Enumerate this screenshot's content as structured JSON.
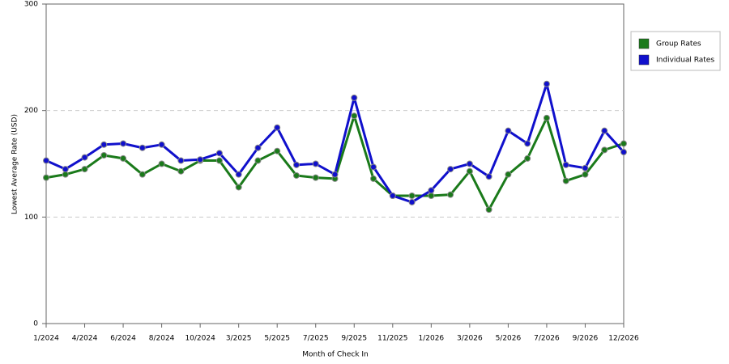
{
  "chart_data": {
    "type": "line",
    "x_label": "Month of Check In",
    "y_label": "Lowest Average Rate (USD)",
    "categories": [
      "1/2024",
      null,
      "4/2024",
      null,
      "6/2024",
      null,
      "8/2024",
      null,
      "10/2024",
      null,
      "3/2025",
      null,
      "5/2025",
      null,
      "7/2025",
      null,
      "9/2025",
      null,
      "11/2025",
      null,
      "1/2026",
      null,
      "3/2026",
      null,
      "5/2026",
      null,
      "7/2026",
      null,
      "9/2026",
      null,
      "12/2026"
    ],
    "series": [
      {
        "name": "Group Rates",
        "color": "#1a7a1a",
        "values": [
          137,
          140,
          145,
          158,
          155,
          140,
          150,
          143,
          153,
          153,
          128,
          153,
          162,
          139,
          137,
          136,
          195,
          136,
          120,
          120,
          120,
          121,
          143,
          107,
          140,
          155,
          193,
          134,
          140,
          163,
          169
        ]
      },
      {
        "name": "Individual Rates",
        "color": "#1010cc",
        "values": [
          153,
          145,
          156,
          168,
          169,
          165,
          168,
          153,
          154,
          160,
          140,
          165,
          184,
          149,
          150,
          140,
          212,
          147,
          120,
          114,
          125,
          145,
          150,
          138,
          181,
          169,
          225,
          149,
          146,
          181,
          161
        ]
      }
    ],
    "ylim": [
      0,
      300
    ],
    "yticks": [
      0,
      100,
      200,
      300
    ],
    "grid": true,
    "legend": "right"
  }
}
